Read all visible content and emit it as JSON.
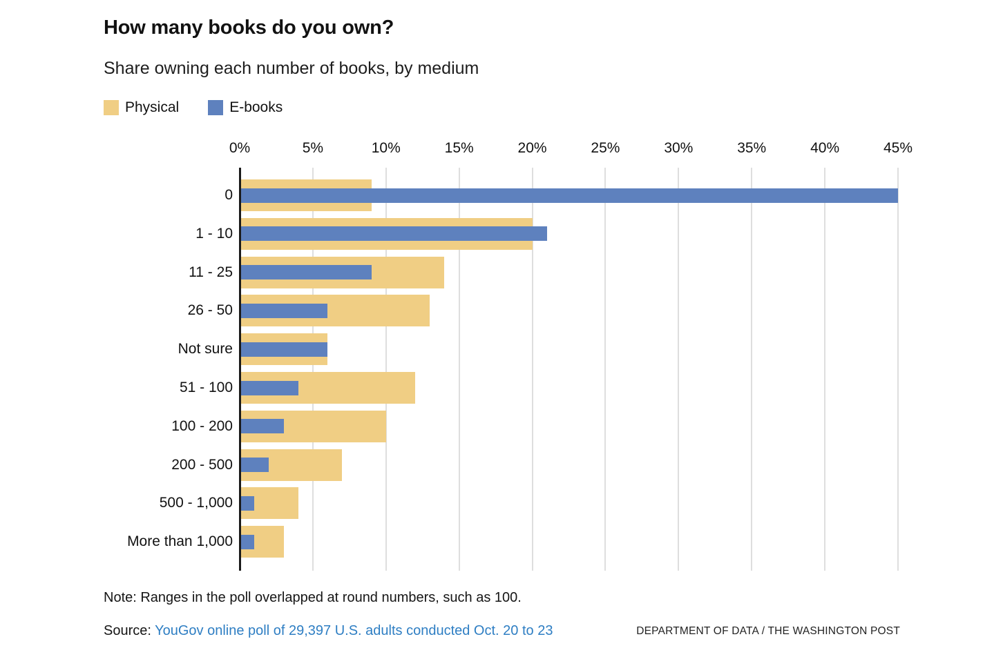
{
  "header": {
    "title": "How many books do you own?",
    "subtitle": "Share owning each number of books, by medium"
  },
  "legend": {
    "items": [
      {
        "label": "Physical",
        "color": "#F0CE84"
      },
      {
        "label": "E-books",
        "color": "#5E81BE"
      }
    ]
  },
  "chart_data": {
    "type": "bar",
    "orientation": "horizontal",
    "title": "How many books do you own?",
    "subtitle": "Share owning each number of books, by medium",
    "categories": [
      "0",
      "1 - 10",
      "11 - 25",
      "26 - 50",
      "Not sure",
      "51 - 100",
      "100 - 200",
      "200 - 500",
      "500 - 1,000",
      "More than 1,000"
    ],
    "series": [
      {
        "name": "Physical",
        "color": "#F0CE84",
        "values": [
          9,
          20,
          14,
          13,
          6,
          12,
          10,
          7,
          4,
          3
        ]
      },
      {
        "name": "E-books",
        "color": "#5E81BE",
        "values": [
          45,
          21,
          9,
          6,
          6,
          4,
          3,
          2,
          1,
          1
        ]
      }
    ],
    "x_axis": {
      "tick_labels": [
        "0%",
        "5%",
        "10%",
        "15%",
        "20%",
        "25%",
        "30%",
        "35%",
        "40%",
        "45%"
      ],
      "tick_values": [
        0,
        5,
        10,
        15,
        20,
        25,
        30,
        35,
        40,
        45
      ],
      "max_value": 45
    },
    "grid": true,
    "legend_position": "top-left",
    "unit": "%"
  },
  "footer": {
    "note": "Note: Ranges in the poll overlapped at round numbers, such as 100.",
    "source_prefix": "Source: ",
    "source_link": "YouGov online poll of 29,397 U.S. adults conducted Oct. 20 to 23",
    "credit": "DEPARTMENT OF DATA / THE WASHINGTON POST"
  },
  "colors": {
    "physical": "#F0CE84",
    "ebooks": "#5E81BE",
    "link_blue": "#2E7EC3",
    "gridline": "#DEDEDE",
    "axis": "#1B1B1B"
  }
}
